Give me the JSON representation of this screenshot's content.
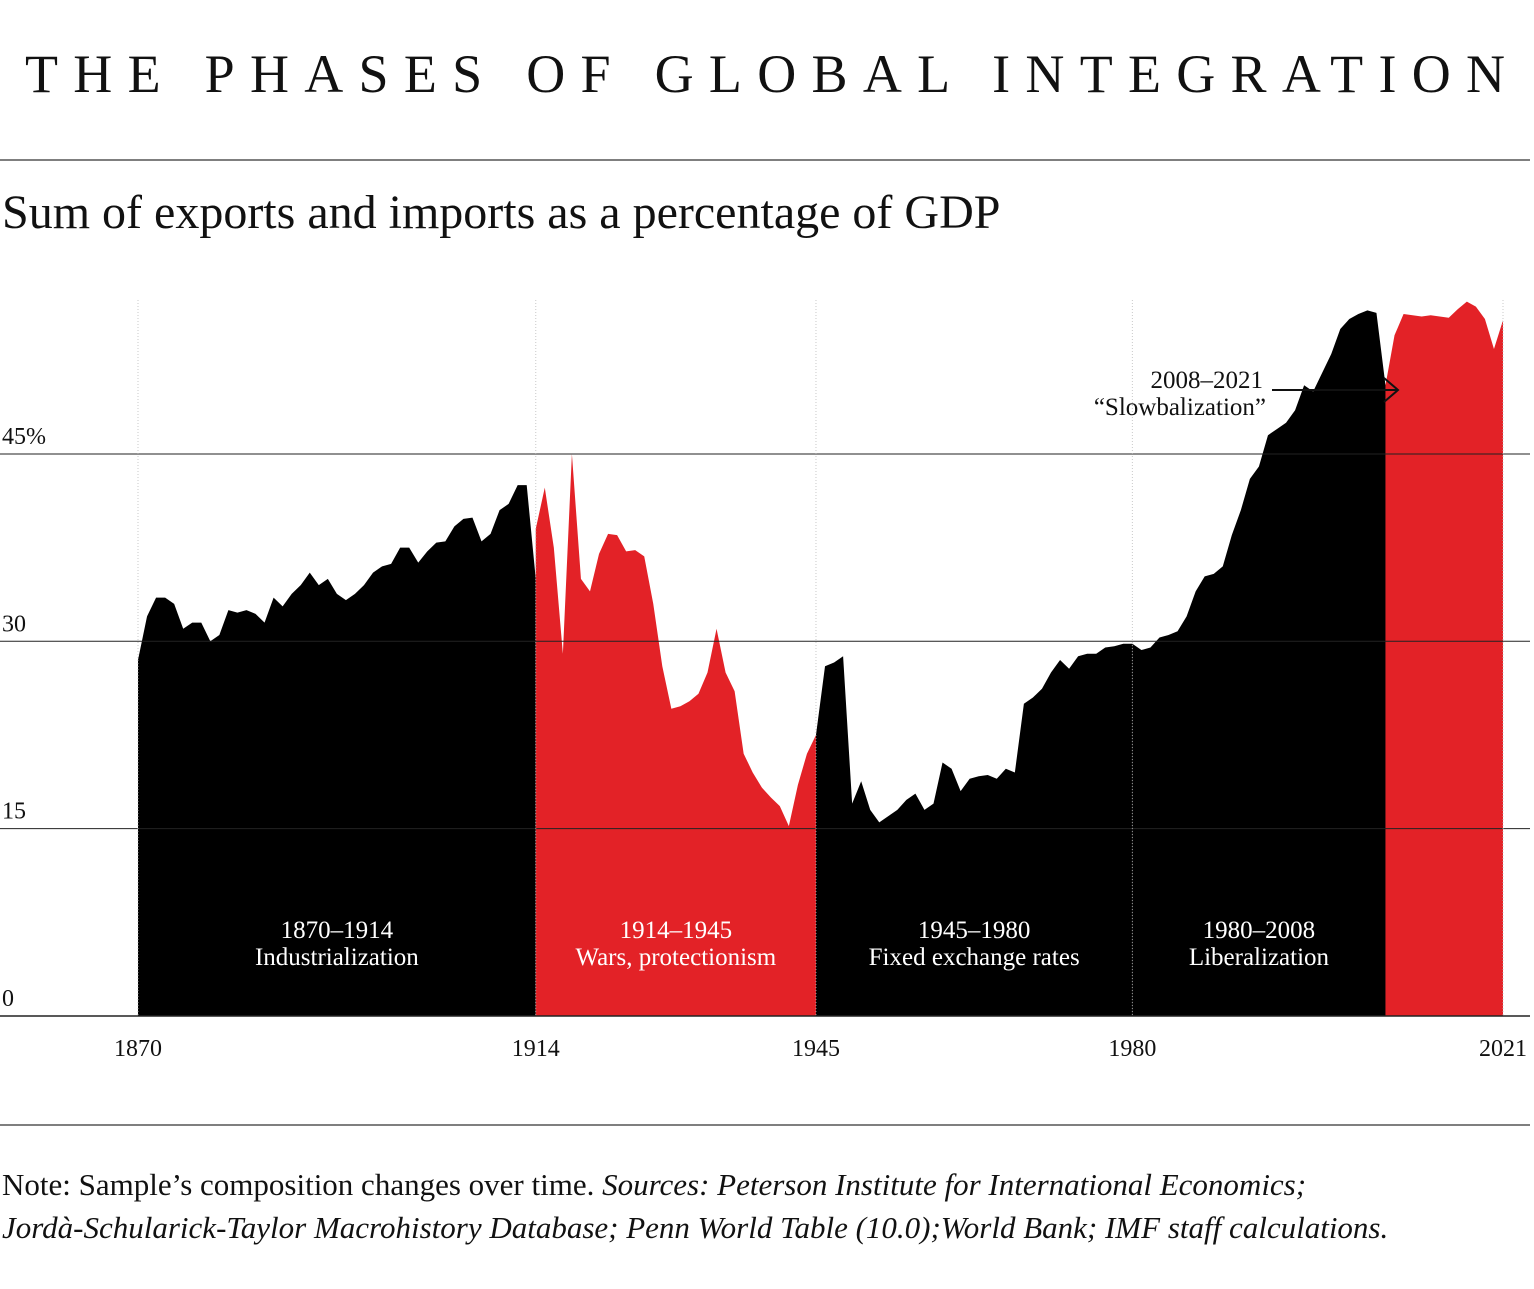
{
  "chart_data": {
    "type": "area",
    "title": "THE PHASES OF GLOBAL INTEGRATION",
    "subtitle": "Sum of exports and imports as a percentage of GDP",
    "xlim": [
      1870,
      2021
    ],
    "xticks": [
      1870,
      1914,
      1945,
      1980,
      2021
    ],
    "ylim": [
      0,
      58
    ],
    "yticks": [
      0,
      15,
      30,
      {
        "value": 45,
        "label": "45%"
      }
    ],
    "grid": true,
    "series": [
      {
        "name": "1870–1914",
        "label": "Industrialization",
        "color": "#000000",
        "x": [
          1870,
          1871,
          1872,
          1873,
          1874,
          1875,
          1876,
          1877,
          1878,
          1879,
          1880,
          1881,
          1882,
          1883,
          1884,
          1885,
          1886,
          1887,
          1888,
          1889,
          1890,
          1891,
          1892,
          1893,
          1894,
          1895,
          1896,
          1897,
          1898,
          1899,
          1900,
          1901,
          1902,
          1903,
          1904,
          1905,
          1906,
          1907,
          1908,
          1909,
          1910,
          1911,
          1912,
          1913,
          1914
        ],
        "values": [
          28.5,
          32,
          33.5,
          33.5,
          33,
          31,
          31.5,
          31.5,
          30,
          30.5,
          32.5,
          32.3,
          32.5,
          32.2,
          31.5,
          33.5,
          32.8,
          33.8,
          34.5,
          35.5,
          34.5,
          35,
          33.8,
          33.3,
          33.8,
          34.5,
          35.5,
          36,
          36.2,
          37.5,
          37.5,
          36.3,
          37.2,
          37.9,
          38,
          39.2,
          39.8,
          39.9,
          38,
          38.6,
          40.5,
          41,
          42.5,
          42.5,
          35
        ]
      },
      {
        "name": "1914–1945",
        "label": "Wars, protectionism",
        "color": "#e32227",
        "x": [
          1914,
          1915,
          1916,
          1917,
          1918,
          1919,
          1920,
          1921,
          1922,
          1923,
          1924,
          1925,
          1926,
          1927,
          1928,
          1929,
          1930,
          1931,
          1932,
          1933,
          1934,
          1935,
          1936,
          1937,
          1938,
          1939,
          1940,
          1941,
          1942,
          1943,
          1944,
          1945
        ],
        "values": [
          39,
          42.3,
          37.5,
          29,
          45,
          35,
          34,
          37,
          38.6,
          38.5,
          37.2,
          37.3,
          36.8,
          33,
          28,
          24.6,
          24.8,
          25.2,
          25.8,
          27.5,
          31,
          27.5,
          26,
          21,
          19.5,
          18.3,
          17.5,
          16.8,
          15.2,
          18.5,
          21,
          22.5
        ]
      },
      {
        "name": "1945–1980",
        "label": "Fixed exchange rates",
        "color": "#000000",
        "x": [
          1945,
          1946,
          1947,
          1948,
          1949,
          1950,
          1951,
          1952,
          1953,
          1954,
          1955,
          1956,
          1957,
          1958,
          1959,
          1960,
          1961,
          1962,
          1963,
          1964,
          1965,
          1966,
          1967,
          1968,
          1969,
          1970,
          1971,
          1972,
          1973,
          1974,
          1975,
          1976,
          1977,
          1978,
          1979,
          1980
        ],
        "values": [
          22.5,
          28,
          28.3,
          28.8,
          17,
          18.8,
          16.5,
          15.5,
          16,
          16.5,
          17.3,
          17.8,
          16.5,
          17,
          20.3,
          19.8,
          18,
          19,
          19.2,
          19.3,
          19,
          19.8,
          19.5,
          25,
          25.5,
          26.2,
          27.5,
          28.5,
          27.8,
          28.8,
          29,
          29,
          29.5,
          29.6,
          29.8,
          29.8
        ]
      },
      {
        "name": "1980–2008",
        "label": "Liberalization",
        "color": "#000000",
        "x": [
          1980,
          1981,
          1982,
          1983,
          1984,
          1985,
          1986,
          1987,
          1988,
          1989,
          1990,
          1991,
          1992,
          1993,
          1994,
          1995,
          1996,
          1997,
          1998,
          1999,
          2000,
          2001,
          2002,
          2003,
          2004,
          2005,
          2006,
          2007,
          2008
        ],
        "values": [
          29.8,
          29.3,
          29.5,
          30.3,
          30.5,
          30.8,
          32,
          34,
          35.2,
          35.4,
          36,
          38.5,
          40.5,
          43,
          44,
          46.5,
          47,
          47.5,
          48.5,
          50.5,
          50,
          51.5,
          53,
          55,
          55.8,
          56.2,
          56.5,
          56.3,
          50.5
        ]
      },
      {
        "name": "2008–2021",
        "label": "“Slowbalization”",
        "color": "#e32227",
        "x": [
          2008,
          2009,
          2010,
          2011,
          2012,
          2013,
          2014,
          2015,
          2016,
          2017,
          2018,
          2019,
          2020,
          2021
        ],
        "values": [
          50.5,
          54.5,
          56.2,
          56.1,
          56,
          56.1,
          56,
          55.9,
          56.6,
          57.2,
          56.8,
          55.8,
          53.4,
          55.7
        ]
      }
    ],
    "note": "Note: Sample’s composition changes over time.",
    "sources": [
      "Sources: Peterson Institute for International Economics;",
      "Jordà-Schularick-Taylor Macrohistory Database; Penn World Table (10.0);World Bank; IMF staff calculations."
    ]
  }
}
